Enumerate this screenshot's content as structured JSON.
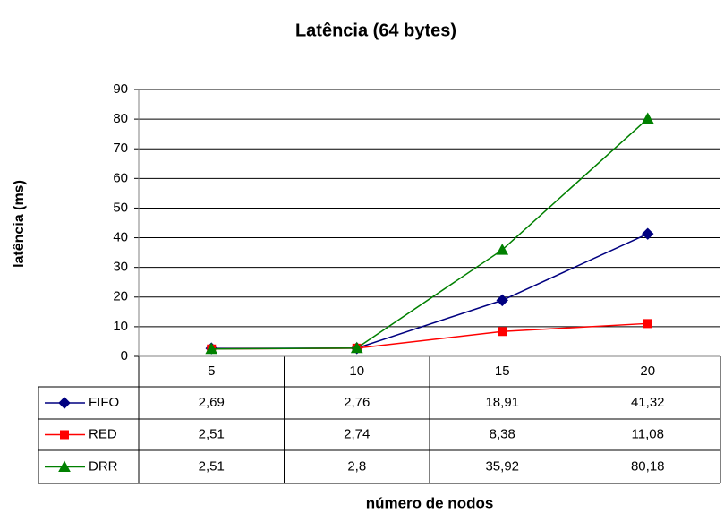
{
  "chart_data": {
    "type": "line",
    "title": "Latência (64 bytes)",
    "x_label": "número de nodos",
    "y_label": "latência (ms)",
    "categories": [
      "5",
      "10",
      "15",
      "20"
    ],
    "series": [
      {
        "name": "FIFO",
        "color": "#000080",
        "marker": "diamond",
        "values": [
          2.69,
          2.76,
          18.91,
          41.32
        ],
        "value_labels": [
          "2,69",
          "2,76",
          "18,91",
          "41,32"
        ]
      },
      {
        "name": "RED",
        "color": "#ff0000",
        "marker": "square",
        "values": [
          2.51,
          2.74,
          8.38,
          11.08
        ],
        "value_labels": [
          "2,51",
          "2,74",
          "8,38",
          "11,08"
        ]
      },
      {
        "name": "DRR",
        "color": "#008000",
        "marker": "triangle",
        "values": [
          2.51,
          2.8,
          35.92,
          80.18
        ],
        "value_labels": [
          "2,51",
          "2,8",
          "35,92",
          "80,18"
        ]
      }
    ],
    "ylim": [
      0,
      90
    ],
    "yticks": [
      0,
      10,
      20,
      30,
      40,
      50,
      60,
      70,
      80,
      90
    ],
    "grid": true
  }
}
